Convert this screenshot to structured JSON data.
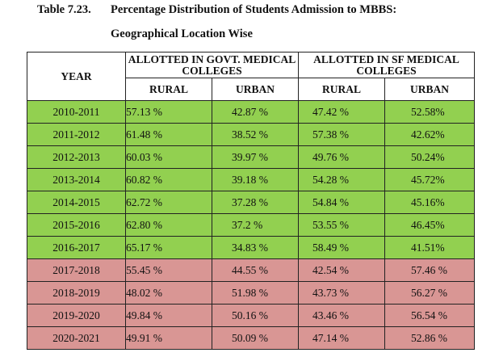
{
  "caption": {
    "number": "Table 7.23.",
    "title_line1": "Percentage Distribution of Students Admission to MBBS:",
    "title_line2": "Geographical Location Wise"
  },
  "headers": {
    "year": "YEAR",
    "govt": "ALLOTTED IN GOVT. MEDICAL COLLEGES",
    "sf": "ALLOTTED IN SF MEDICAL COLLEGES",
    "rural": "RURAL",
    "urban": "URBAN"
  },
  "colors": {
    "green_rows": "#92d050",
    "pink_rows": "#d99694"
  },
  "rows": [
    {
      "year": "2010-2011",
      "govt_rural": "57.13 %",
      "govt_urban": "42.87 %",
      "sf_rural": "47.42 %",
      "sf_urban": "52.58%",
      "shade": "green"
    },
    {
      "year": "2011-2012",
      "govt_rural": "61.48 %",
      "govt_urban": "38.52 %",
      "sf_rural": "57.38 %",
      "sf_urban": "42.62%",
      "shade": "green"
    },
    {
      "year": "2012-2013",
      "govt_rural": "60.03 %",
      "govt_urban": "39.97 %",
      "sf_rural": "49.76 %",
      "sf_urban": "50.24%",
      "shade": "green"
    },
    {
      "year": "2013-2014",
      "govt_rural": "60.82 %",
      "govt_urban": "39.18 %",
      "sf_rural": "54.28 %",
      "sf_urban": "45.72%",
      "shade": "green"
    },
    {
      "year": "2014-2015",
      "govt_rural": "62.72 %",
      "govt_urban": "37.28 %",
      "sf_rural": "54.84 %",
      "sf_urban": "45.16%",
      "shade": "green"
    },
    {
      "year": "2015-2016",
      "govt_rural": "62.80 %",
      "govt_urban": "37.2 %",
      "sf_rural": "53.55 %",
      "sf_urban": "46.45%",
      "shade": "green"
    },
    {
      "year": "2016-2017",
      "govt_rural": "65.17 %",
      "govt_urban": "34.83 %",
      "sf_rural": "58.49 %",
      "sf_urban": "41.51%",
      "shade": "green"
    },
    {
      "year": "2017-2018",
      "govt_rural": "55.45 %",
      "govt_urban": "44.55 %",
      "sf_rural": "42.54 %",
      "sf_urban": "57.46 %",
      "shade": "pink"
    },
    {
      "year": "2018-2019",
      "govt_rural": "48.02 %",
      "govt_urban": "51.98 %",
      "sf_rural": "43.73 %",
      "sf_urban": "56.27 %",
      "shade": "pink"
    },
    {
      "year": "2019-2020",
      "govt_rural": "49.84 %",
      "govt_urban": "50.16 %",
      "sf_rural": "43.46 %",
      "sf_urban": "56.54 %",
      "shade": "pink"
    },
    {
      "year": "2020-2021",
      "govt_rural": "49.91 %",
      "govt_urban": "50.09 %",
      "sf_rural": "47.14 %",
      "sf_urban": "52.86 %",
      "shade": "pink"
    }
  ]
}
